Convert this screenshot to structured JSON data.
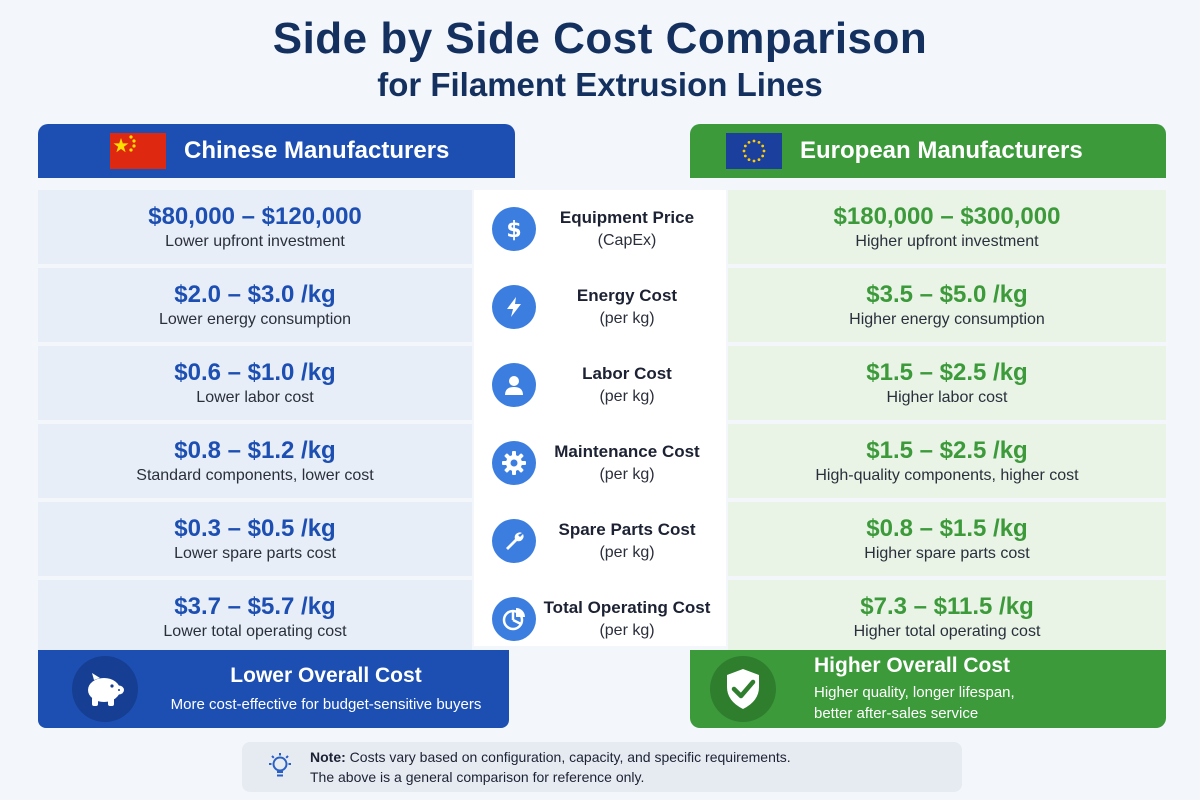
{
  "title": "Side by Side Cost Comparison",
  "subtitle": "for Filament Extrusion Lines",
  "columns": {
    "left": {
      "title": "Chinese Manufacturers",
      "flag_icon": "china-flag-icon",
      "color": "#1d4fb2"
    },
    "right": {
      "title": "European Manufacturers",
      "flag_icon": "eu-flag-icon",
      "color": "#3c9a3a"
    }
  },
  "rows": [
    {
      "metric": "Equipment Price",
      "metric_sub": "(CapEx)",
      "icon": "dollar-icon",
      "left_value": "$80,000 – $120,000",
      "left_desc": "Lower upfront investment",
      "right_value": "$180,000 – $300,000",
      "right_desc": "Higher upfront investment"
    },
    {
      "metric": "Energy Cost",
      "metric_sub": "(per kg)",
      "icon": "lightning-icon",
      "left_value": "$2.0 – $3.0 /kg",
      "left_desc": "Lower energy consumption",
      "right_value": "$3.5 – $5.0 /kg",
      "right_desc": "Higher energy consumption"
    },
    {
      "metric": "Labor Cost",
      "metric_sub": "(per kg)",
      "icon": "person-icon",
      "left_value": "$0.6 – $1.0 /kg",
      "left_desc": "Lower labor cost",
      "right_value": "$1.5 – $2.5 /kg",
      "right_desc": "Higher labor cost"
    },
    {
      "metric": "Maintenance Cost",
      "metric_sub": "(per kg)",
      "icon": "gear-icon",
      "left_value": "$0.8 – $1.2 /kg",
      "left_desc": "Standard components, lower cost",
      "right_value": "$1.5 – $2.5 /kg",
      "right_desc": "High-quality components, higher cost"
    },
    {
      "metric": "Spare Parts Cost",
      "metric_sub": "(per kg)",
      "icon": "wrench-icon",
      "left_value": "$0.3 – $0.5 /kg",
      "left_desc": "Lower spare parts cost",
      "right_value": "$0.8 – $1.5 /kg",
      "right_desc": "Higher spare parts cost"
    },
    {
      "metric": "Total Operating Cost",
      "metric_sub": "(per kg)",
      "icon": "pie-chart-icon",
      "left_value": "$3.7 – $5.7 /kg",
      "left_desc": "Lower total operating cost",
      "right_value": "$7.3 – $11.5 /kg",
      "right_desc": "Higher total operating cost"
    }
  ],
  "summary": {
    "left": {
      "title": "Lower Overall Cost",
      "desc": "More cost-effective for budget-sensitive buyers",
      "icon": "piggy-bank-icon"
    },
    "right": {
      "title": "Higher Overall Cost",
      "desc_line1": "Higher quality, longer lifespan,",
      "desc_line2": "better after-sales service",
      "icon": "shield-check-icon"
    }
  },
  "note": {
    "label": "Note:",
    "line1": " Costs vary based on configuration, capacity, and specific requirements.",
    "line2": "The above is a general comparison for reference only.",
    "icon": "lightbulb-icon"
  }
}
